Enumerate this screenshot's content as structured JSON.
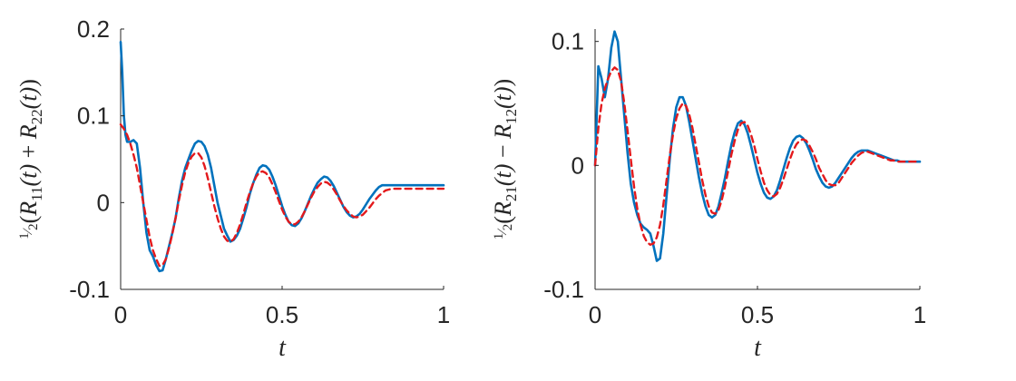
{
  "chart_data": [
    {
      "type": "line",
      "xlabel": "t",
      "ylabel": "½(R₁₁(t) + R₂₂(t))",
      "ylabel_parts": {
        "frac_num": "1",
        "frac_den": "2",
        "open": "(",
        "R1": "R",
        "sub1": "11",
        "arg1": "(t)",
        "op": "+",
        "R2": "R",
        "sub2": "22",
        "arg2": "(t)",
        "close": ")"
      },
      "xlim": [
        0,
        1
      ],
      "ylim": [
        -0.1,
        0.2
      ],
      "xticks": [
        "0",
        "0.5",
        "1"
      ],
      "yticks": [
        "-0.1",
        "0",
        "0.1",
        "0.2"
      ],
      "grid": false,
      "series": [
        {
          "color": "#0072BD",
          "style": "solid",
          "x": [
            0.0,
            0.005,
            0.01,
            0.015,
            0.02,
            0.03,
            0.04,
            0.05,
            0.06,
            0.07,
            0.08,
            0.09,
            0.1,
            0.11,
            0.12,
            0.13,
            0.14,
            0.15,
            0.16,
            0.17,
            0.18,
            0.19,
            0.2,
            0.21,
            0.22,
            0.23,
            0.24,
            0.25,
            0.26,
            0.27,
            0.28,
            0.29,
            0.3,
            0.31,
            0.32,
            0.33,
            0.34,
            0.35,
            0.36,
            0.37,
            0.38,
            0.39,
            0.4,
            0.41,
            0.42,
            0.43,
            0.44,
            0.45,
            0.46,
            0.47,
            0.48,
            0.49,
            0.5,
            0.51,
            0.52,
            0.53,
            0.54,
            0.55,
            0.56,
            0.57,
            0.58,
            0.59,
            0.6,
            0.61,
            0.62,
            0.63,
            0.64,
            0.65,
            0.66,
            0.67,
            0.68,
            0.69,
            0.7,
            0.71,
            0.72,
            0.73,
            0.74,
            0.75,
            0.76,
            0.77,
            0.78,
            0.79,
            0.8,
            0.81,
            0.82,
            0.83,
            0.84,
            0.85,
            0.86,
            0.87,
            0.88,
            0.89,
            0.9,
            0.91,
            0.92,
            0.93,
            0.94,
            0.95,
            0.96,
            0.97,
            0.98,
            0.99,
            1.0
          ],
          "y": [
            0.185,
            0.15,
            0.1,
            0.078,
            0.07,
            0.07,
            0.072,
            0.068,
            0.04,
            0.0,
            -0.035,
            -0.055,
            -0.062,
            -0.072,
            -0.079,
            -0.078,
            -0.065,
            -0.05,
            -0.035,
            -0.018,
            0.005,
            0.025,
            0.04,
            0.05,
            0.06,
            0.068,
            0.071,
            0.07,
            0.065,
            0.055,
            0.04,
            0.02,
            0.0,
            -0.015,
            -0.03,
            -0.038,
            -0.045,
            -0.043,
            -0.038,
            -0.03,
            -0.018,
            -0.005,
            0.01,
            0.022,
            0.032,
            0.04,
            0.043,
            0.042,
            0.038,
            0.03,
            0.02,
            0.008,
            -0.004,
            -0.014,
            -0.022,
            -0.026,
            -0.027,
            -0.024,
            -0.018,
            -0.01,
            -0.001,
            0.008,
            0.016,
            0.023,
            0.027,
            0.03,
            0.029,
            0.025,
            0.019,
            0.011,
            0.003,
            -0.005,
            -0.011,
            -0.015,
            -0.017,
            -0.016,
            -0.013,
            -0.008,
            -0.002,
            0.004,
            0.009,
            0.014,
            0.018,
            0.02,
            0.02,
            0.02,
            0.02,
            0.02,
            0.02,
            0.02,
            0.02,
            0.02,
            0.02,
            0.02,
            0.02,
            0.02,
            0.02,
            0.02,
            0.02,
            0.02,
            0.02,
            0.02,
            0.02
          ]
        },
        {
          "color": "#E3191C",
          "style": "dashed",
          "x": [
            0.0,
            0.01,
            0.02,
            0.03,
            0.04,
            0.05,
            0.06,
            0.07,
            0.08,
            0.09,
            0.1,
            0.11,
            0.12,
            0.13,
            0.14,
            0.15,
            0.16,
            0.17,
            0.18,
            0.19,
            0.2,
            0.21,
            0.22,
            0.23,
            0.24,
            0.25,
            0.26,
            0.27,
            0.28,
            0.29,
            0.3,
            0.31,
            0.32,
            0.33,
            0.34,
            0.35,
            0.36,
            0.37,
            0.38,
            0.39,
            0.4,
            0.41,
            0.42,
            0.43,
            0.44,
            0.45,
            0.46,
            0.47,
            0.48,
            0.49,
            0.5,
            0.51,
            0.52,
            0.53,
            0.54,
            0.55,
            0.56,
            0.57,
            0.58,
            0.59,
            0.6,
            0.61,
            0.62,
            0.63,
            0.64,
            0.65,
            0.66,
            0.67,
            0.68,
            0.69,
            0.7,
            0.71,
            0.72,
            0.73,
            0.74,
            0.75,
            0.76,
            0.77,
            0.78,
            0.79,
            0.8,
            0.81,
            0.82,
            0.83,
            0.84,
            0.85,
            0.86,
            0.87,
            0.88,
            0.89,
            0.9,
            0.91,
            0.92,
            0.93,
            0.94,
            0.95,
            0.96,
            0.97,
            0.98,
            0.99,
            1.0
          ],
          "y": [
            0.09,
            0.085,
            0.078,
            0.068,
            0.055,
            0.04,
            0.02,
            0.0,
            -0.02,
            -0.04,
            -0.055,
            -0.065,
            -0.073,
            -0.072,
            -0.065,
            -0.052,
            -0.036,
            -0.018,
            0.002,
            0.02,
            0.035,
            0.046,
            0.053,
            0.057,
            0.057,
            0.052,
            0.042,
            0.028,
            0.012,
            -0.004,
            -0.018,
            -0.03,
            -0.039,
            -0.044,
            -0.045,
            -0.042,
            -0.035,
            -0.025,
            -0.013,
            0.0,
            0.012,
            0.022,
            0.03,
            0.035,
            0.036,
            0.034,
            0.029,
            0.021,
            0.012,
            0.002,
            -0.008,
            -0.016,
            -0.022,
            -0.025,
            -0.025,
            -0.022,
            -0.017,
            -0.01,
            -0.002,
            0.006,
            0.013,
            0.018,
            0.022,
            0.024,
            0.023,
            0.02,
            0.015,
            0.009,
            0.002,
            -0.004,
            -0.009,
            -0.013,
            -0.016,
            -0.017,
            -0.016,
            -0.014,
            -0.01,
            -0.006,
            -0.001,
            0.004,
            0.008,
            0.011,
            0.014,
            0.015,
            0.016,
            0.016,
            0.016,
            0.016,
            0.016,
            0.016,
            0.016,
            0.016,
            0.016,
            0.016,
            0.016,
            0.016,
            0.016,
            0.016,
            0.016,
            0.016,
            0.016
          ]
        }
      ]
    },
    {
      "type": "line",
      "xlabel": "t",
      "ylabel": "½(R₂₁(t) − R₁₂(t))",
      "ylabel_parts": {
        "frac_num": "1",
        "frac_den": "2",
        "open": "(",
        "R1": "R",
        "sub1": "21",
        "arg1": "(t)",
        "op": "−",
        "R2": "R",
        "sub2": "12",
        "arg2": "(t)",
        "close": ")"
      },
      "xlim": [
        0,
        1
      ],
      "ylim": [
        -0.1,
        0.11
      ],
      "xticks": [
        "0",
        "0.5",
        "1"
      ],
      "yticks": [
        "-0.1",
        "0",
        "0.1"
      ],
      "grid": false,
      "series": [
        {
          "color": "#0072BD",
          "style": "solid",
          "x": [
            0.0,
            0.01,
            0.02,
            0.03,
            0.04,
            0.05,
            0.06,
            0.07,
            0.08,
            0.09,
            0.1,
            0.11,
            0.12,
            0.13,
            0.14,
            0.15,
            0.16,
            0.17,
            0.18,
            0.19,
            0.2,
            0.21,
            0.22,
            0.23,
            0.24,
            0.25,
            0.26,
            0.27,
            0.28,
            0.29,
            0.3,
            0.31,
            0.32,
            0.33,
            0.34,
            0.35,
            0.36,
            0.37,
            0.38,
            0.39,
            0.4,
            0.41,
            0.42,
            0.43,
            0.44,
            0.45,
            0.46,
            0.47,
            0.48,
            0.49,
            0.5,
            0.51,
            0.52,
            0.53,
            0.54,
            0.55,
            0.56,
            0.57,
            0.58,
            0.59,
            0.6,
            0.61,
            0.62,
            0.63,
            0.64,
            0.65,
            0.66,
            0.67,
            0.68,
            0.69,
            0.7,
            0.71,
            0.72,
            0.73,
            0.74,
            0.75,
            0.76,
            0.77,
            0.78,
            0.79,
            0.8,
            0.81,
            0.82,
            0.83,
            0.84,
            0.85,
            0.86,
            0.87,
            0.88,
            0.89,
            0.9,
            0.91,
            0.92,
            0.93,
            0.94,
            0.95,
            0.96,
            0.97,
            0.98,
            0.99,
            1.0
          ],
          "y": [
            0.0,
            0.08,
            0.07,
            0.055,
            0.07,
            0.095,
            0.108,
            0.1,
            0.07,
            0.04,
            0.01,
            -0.015,
            -0.03,
            -0.04,
            -0.047,
            -0.05,
            -0.052,
            -0.055,
            -0.065,
            -0.077,
            -0.075,
            -0.055,
            -0.025,
            0.005,
            0.03,
            0.047,
            0.055,
            0.055,
            0.048,
            0.035,
            0.02,
            0.005,
            -0.01,
            -0.023,
            -0.033,
            -0.04,
            -0.042,
            -0.04,
            -0.033,
            -0.022,
            -0.01,
            0.004,
            0.017,
            0.027,
            0.034,
            0.036,
            0.033,
            0.026,
            0.016,
            0.005,
            -0.006,
            -0.015,
            -0.022,
            -0.026,
            -0.027,
            -0.025,
            -0.02,
            -0.012,
            -0.003,
            0.006,
            0.014,
            0.02,
            0.023,
            0.024,
            0.022,
            0.018,
            0.012,
            0.005,
            -0.003,
            -0.009,
            -0.014,
            -0.017,
            -0.018,
            -0.017,
            -0.014,
            -0.01,
            -0.006,
            -0.002,
            0.002,
            0.006,
            0.009,
            0.011,
            0.012,
            0.012,
            0.012,
            0.011,
            0.01,
            0.009,
            0.008,
            0.007,
            0.006,
            0.005,
            0.004,
            0.004,
            0.003,
            0.003,
            0.003,
            0.003,
            0.003,
            0.003,
            0.003
          ]
        },
        {
          "color": "#E3191C",
          "style": "dashed",
          "x": [
            0.0,
            0.01,
            0.02,
            0.03,
            0.04,
            0.05,
            0.06,
            0.07,
            0.08,
            0.09,
            0.1,
            0.11,
            0.12,
            0.13,
            0.14,
            0.15,
            0.16,
            0.17,
            0.18,
            0.19,
            0.2,
            0.21,
            0.22,
            0.23,
            0.24,
            0.25,
            0.26,
            0.27,
            0.28,
            0.29,
            0.3,
            0.31,
            0.32,
            0.33,
            0.34,
            0.35,
            0.36,
            0.37,
            0.38,
            0.39,
            0.4,
            0.41,
            0.42,
            0.43,
            0.44,
            0.45,
            0.46,
            0.47,
            0.48,
            0.49,
            0.5,
            0.51,
            0.52,
            0.53,
            0.54,
            0.55,
            0.56,
            0.57,
            0.58,
            0.59,
            0.6,
            0.61,
            0.62,
            0.63,
            0.64,
            0.65,
            0.66,
            0.67,
            0.68,
            0.69,
            0.7,
            0.71,
            0.72,
            0.73,
            0.74,
            0.75,
            0.76,
            0.77,
            0.78,
            0.79,
            0.8,
            0.81,
            0.82,
            0.83,
            0.84,
            0.85,
            0.86,
            0.87,
            0.88,
            0.89,
            0.9,
            0.91,
            0.92,
            0.93,
            0.94,
            0.95,
            0.96,
            0.97,
            0.98,
            0.99,
            1.0
          ],
          "y": [
            0.0,
            0.03,
            0.05,
            0.062,
            0.07,
            0.076,
            0.079,
            0.077,
            0.068,
            0.05,
            0.028,
            0.005,
            -0.017,
            -0.035,
            -0.048,
            -0.057,
            -0.062,
            -0.064,
            -0.063,
            -0.058,
            -0.048,
            -0.032,
            -0.012,
            0.008,
            0.025,
            0.038,
            0.046,
            0.05,
            0.048,
            0.041,
            0.03,
            0.016,
            0.002,
            -0.012,
            -0.024,
            -0.033,
            -0.038,
            -0.039,
            -0.036,
            -0.028,
            -0.017,
            -0.004,
            0.009,
            0.02,
            0.029,
            0.034,
            0.035,
            0.032,
            0.025,
            0.016,
            0.005,
            -0.005,
            -0.014,
            -0.02,
            -0.024,
            -0.025,
            -0.023,
            -0.018,
            -0.011,
            -0.003,
            0.005,
            0.012,
            0.017,
            0.02,
            0.021,
            0.02,
            0.016,
            0.011,
            0.005,
            -0.002,
            -0.007,
            -0.012,
            -0.015,
            -0.016,
            -0.016,
            -0.014,
            -0.01,
            -0.006,
            -0.002,
            0.002,
            0.005,
            0.008,
            0.01,
            0.011,
            0.011,
            0.01,
            0.009,
            0.008,
            0.007,
            0.006,
            0.005,
            0.004,
            0.004,
            0.003,
            0.003,
            0.003,
            0.003,
            0.003,
            0.003,
            0.003,
            0.003
          ]
        }
      ]
    }
  ]
}
